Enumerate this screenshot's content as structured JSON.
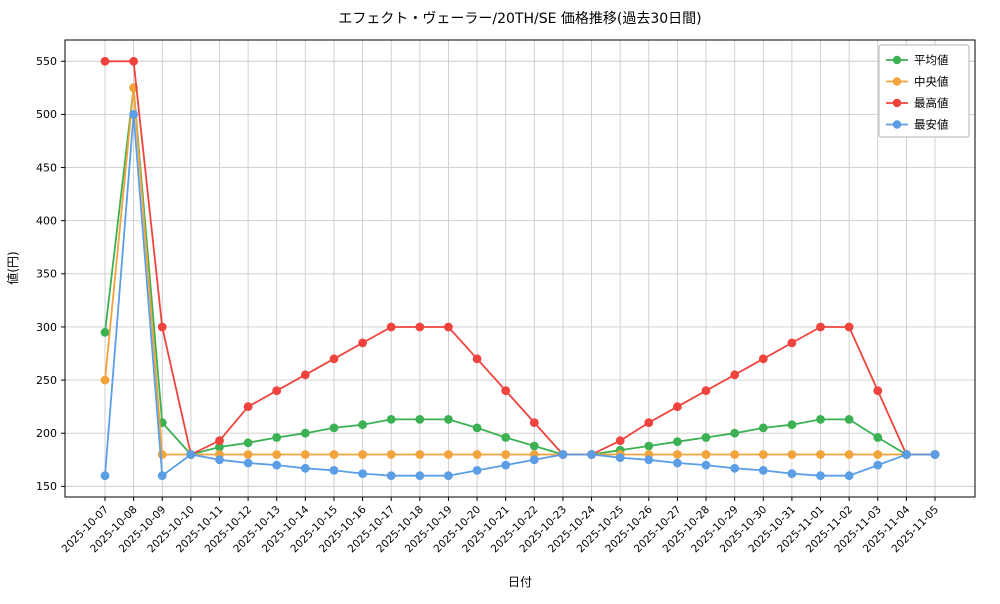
{
  "chart_data": {
    "type": "line",
    "title": "エフェクト・ヴェーラー/20TH/SE 価格推移(過去30日間)",
    "xlabel": "日付",
    "ylabel": "値(円)",
    "ylim": [
      140,
      570
    ],
    "yticks": [
      150,
      200,
      250,
      300,
      350,
      400,
      450,
      500,
      550
    ],
    "grid": true,
    "legend_position": "upper-right",
    "marker": "circle",
    "categories": [
      "2025-10-07",
      "2025-10-08",
      "2025-10-09",
      "2025-10-10",
      "2025-10-11",
      "2025-10-12",
      "2025-10-13",
      "2025-10-14",
      "2025-10-15",
      "2025-10-16",
      "2025-10-17",
      "2025-10-18",
      "2025-10-19",
      "2025-10-20",
      "2025-10-21",
      "2025-10-22",
      "2025-10-23",
      "2025-10-24",
      "2025-10-25",
      "2025-10-26",
      "2025-10-27",
      "2025-10-28",
      "2025-10-29",
      "2025-10-30",
      "2025-10-31",
      "2025-11-01",
      "2025-11-02",
      "2025-11-03",
      "2025-11-04",
      "2025-11-05"
    ],
    "series": [
      {
        "name": "平均値",
        "key": "average",
        "color": "#3bb153",
        "values": [
          295,
          525,
          210,
          180,
          187,
          191,
          196,
          200,
          205,
          208,
          213,
          213,
          213,
          205,
          196,
          188,
          180,
          180,
          184,
          188,
          192,
          196,
          200,
          205,
          208,
          213,
          213,
          196,
          180,
          180
        ]
      },
      {
        "name": "中央値",
        "key": "median",
        "color": "#f2a33c",
        "values": [
          250,
          525,
          180,
          180,
          180,
          180,
          180,
          180,
          180,
          180,
          180,
          180,
          180,
          180,
          180,
          180,
          180,
          180,
          180,
          180,
          180,
          180,
          180,
          180,
          180,
          180,
          180,
          180,
          180,
          180
        ]
      },
      {
        "name": "最高値",
        "key": "max",
        "color": "#ef443e",
        "values": [
          550,
          550,
          300,
          180,
          193,
          225,
          240,
          255,
          270,
          285,
          300,
          300,
          300,
          270,
          240,
          210,
          180,
          180,
          193,
          210,
          225,
          240,
          255,
          270,
          285,
          300,
          300,
          240,
          180,
          180
        ]
      },
      {
        "name": "最安値",
        "key": "min",
        "color": "#5b9ee6",
        "values": [
          160,
          500,
          160,
          180,
          175,
          172,
          170,
          167,
          165,
          162,
          160,
          160,
          160,
          165,
          170,
          175,
          180,
          180,
          177,
          175,
          172,
          170,
          167,
          165,
          162,
          160,
          160,
          170,
          180,
          180
        ]
      }
    ]
  }
}
